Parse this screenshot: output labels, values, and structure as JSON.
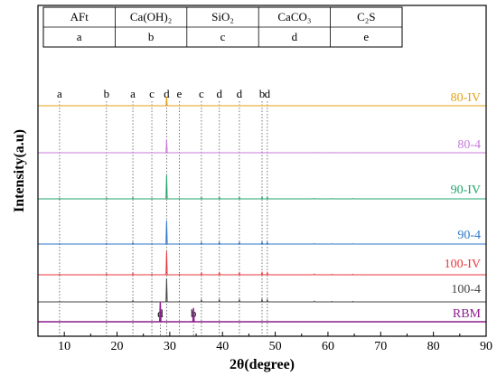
{
  "chart_data": {
    "type": "line",
    "xlabel": "2θ(degree)",
    "ylabel": "Intensity(a.u)",
    "xlim": [
      5,
      90
    ],
    "x_ticks": [
      10,
      20,
      30,
      40,
      50,
      60,
      70,
      80,
      90
    ],
    "grid": false,
    "legend": {
      "placement": "top-left",
      "phases": [
        "AFt",
        "Ca(OH)₂",
        "SiO₂",
        "CaCO₃",
        "C₂S"
      ],
      "symbols": [
        "a",
        "b",
        "c",
        "d",
        "e"
      ]
    },
    "peak_markers": [
      {
        "label": "a",
        "x": 9.1
      },
      {
        "label": "b",
        "x": 18.0
      },
      {
        "label": "a",
        "x": 23.0
      },
      {
        "label": "c",
        "x": 26.6
      },
      {
        "label": "d",
        "x": 29.4
      },
      {
        "label": "e",
        "x": 31.8
      },
      {
        "label": "c",
        "x": 36.0
      },
      {
        "label": "d",
        "x": 39.4
      },
      {
        "label": "d",
        "x": 43.2
      },
      {
        "label": "b",
        "x": 47.5
      },
      {
        "label": "d",
        "x": 48.5
      }
    ],
    "rbm_markers": [
      {
        "label": "d",
        "x": 28.2
      },
      {
        "label": "b",
        "x": 34.5
      }
    ],
    "series": [
      {
        "name": "80-IV",
        "color": "#E6A117",
        "peaks": [
          [
            9.1,
            3
          ],
          [
            18.0,
            3
          ],
          [
            23.0,
            5
          ],
          [
            26.6,
            2
          ],
          [
            29.4,
            100
          ],
          [
            31.8,
            2
          ],
          [
            36.0,
            5
          ],
          [
            39.4,
            6
          ],
          [
            43.2,
            6
          ],
          [
            47.5,
            7
          ],
          [
            48.5,
            6
          ],
          [
            57.4,
            2
          ],
          [
            60.7,
            1.5
          ],
          [
            64.7,
            1.5
          ],
          [
            65.6,
            1
          ]
        ]
      },
      {
        "name": "80-4",
        "color": "#C77CDB",
        "peaks": [
          [
            9.1,
            2
          ],
          [
            18.0,
            3
          ],
          [
            23.0,
            5
          ],
          [
            26.6,
            2
          ],
          [
            29.4,
            100
          ],
          [
            31.8,
            1.5
          ],
          [
            36.0,
            5
          ],
          [
            39.4,
            6
          ],
          [
            43.2,
            6
          ],
          [
            47.5,
            7
          ],
          [
            48.5,
            6
          ],
          [
            57.4,
            2
          ],
          [
            60.7,
            1.5
          ],
          [
            64.7,
            1.5
          ]
        ]
      },
      {
        "name": "90-IV",
        "color": "#21A56B",
        "peaks": [
          [
            9.1,
            2
          ],
          [
            18.0,
            3
          ],
          [
            23.0,
            5
          ],
          [
            26.6,
            2
          ],
          [
            29.4,
            100
          ],
          [
            31.8,
            1.5
          ],
          [
            36.0,
            6
          ],
          [
            39.4,
            7
          ],
          [
            43.2,
            7
          ],
          [
            47.5,
            8
          ],
          [
            48.5,
            7
          ],
          [
            57.4,
            2
          ],
          [
            60.7,
            1.5
          ],
          [
            64.7,
            1.5
          ]
        ]
      },
      {
        "name": "90-4",
        "color": "#2F78C8",
        "peaks": [
          [
            9.1,
            2
          ],
          [
            18.0,
            3
          ],
          [
            23.0,
            5
          ],
          [
            26.6,
            2
          ],
          [
            29.4,
            100
          ],
          [
            31.8,
            1.5
          ],
          [
            36.0,
            6
          ],
          [
            39.4,
            7
          ],
          [
            43.2,
            7
          ],
          [
            47.5,
            8
          ],
          [
            48.5,
            7
          ],
          [
            57.4,
            2
          ],
          [
            60.7,
            1.5
          ],
          [
            64.7,
            1.5
          ]
        ]
      },
      {
        "name": "100-IV",
        "color": "#E8373C",
        "peaks": [
          [
            9.1,
            2
          ],
          [
            18.0,
            4
          ],
          [
            23.0,
            6
          ],
          [
            26.6,
            2
          ],
          [
            29.4,
            100
          ],
          [
            31.8,
            2
          ],
          [
            36.0,
            8
          ],
          [
            39.4,
            9
          ],
          [
            43.2,
            9
          ],
          [
            47.5,
            10
          ],
          [
            48.5,
            9
          ],
          [
            57.4,
            3
          ],
          [
            60.7,
            2
          ],
          [
            64.7,
            2
          ]
        ]
      },
      {
        "name": "100-4",
        "color": "#444444",
        "peaks": [
          [
            9.1,
            2
          ],
          [
            18.0,
            4
          ],
          [
            23.0,
            6
          ],
          [
            26.6,
            2
          ],
          [
            29.4,
            100
          ],
          [
            31.8,
            2
          ],
          [
            36.0,
            8
          ],
          [
            39.4,
            9
          ],
          [
            43.2,
            9
          ],
          [
            47.5,
            10
          ],
          [
            48.5,
            9
          ],
          [
            57.4,
            3
          ],
          [
            60.7,
            2
          ],
          [
            64.7,
            2
          ]
        ]
      },
      {
        "name": "RBM",
        "color": "#8E1E8E",
        "peaks": [
          [
            28.2,
            100
          ],
          [
            34.5,
            70
          ]
        ]
      }
    ]
  }
}
